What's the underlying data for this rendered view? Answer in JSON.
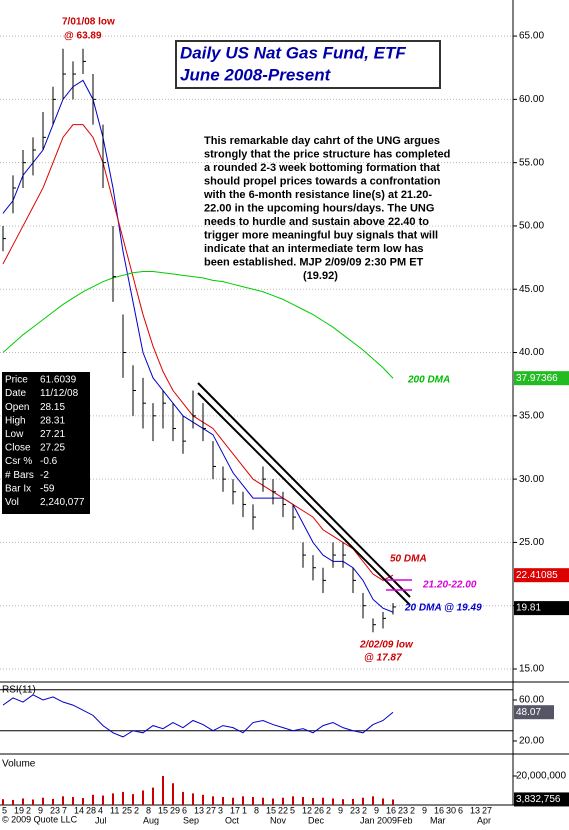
{
  "chart_data": {
    "type": "ohlc",
    "title": [
      "Daily US Nat Gas Fund, ETF",
      "June 2008-Present"
    ],
    "commentary": [
      "This remarkable day cahrt of the UNG argues",
      "strongly that the price structure has completed",
      "a rounded 2-3 week bottoming formation that",
      "should propel prices towards a confrontation",
      "with the 6-month resistance line(s) at 21.20-",
      "22.00 in the upcoming hours/days. The UNG",
      "needs to hurdle and sustain above 22.40 to",
      "trigger more meaningful buy signals that will",
      "indicate that an intermediate term low has",
      "been established. MJP  2/09/09 2:30 PM ET",
      "(19.92)"
    ],
    "annotations": {
      "high_note": [
        "7/01/08 low",
        "@ 63.89"
      ],
      "low_note": [
        "2/02/09 low",
        "@ 17.87"
      ],
      "dma200": "200 DMA",
      "dma50": "50 DMA",
      "resistance": "21.20-22.00",
      "dma20": "20 DMA @ 19.49"
    },
    "ylim": [
      14.13,
      67.85
    ],
    "yticks": [
      {
        "value": 65,
        "label": "65.00"
      },
      {
        "value": 60,
        "label": "60.00"
      },
      {
        "value": 55,
        "label": "55.00"
      },
      {
        "value": 50,
        "label": "50.00"
      },
      {
        "value": 45,
        "label": "45.00"
      },
      {
        "value": 40,
        "label": "40.00"
      },
      {
        "value": 35,
        "label": "35.00"
      },
      {
        "value": 30,
        "label": "30.00"
      },
      {
        "value": 25,
        "label": "25.00"
      },
      {
        "value": 20,
        "label": "20.00"
      },
      {
        "value": 15,
        "label": "15.00"
      }
    ],
    "grid": true,
    "high": [
      50,
      54,
      56,
      57,
      59,
      61,
      64,
      63,
      64,
      62,
      58,
      50,
      43,
      39,
      38,
      36,
      37,
      36,
      35,
      37,
      36,
      33,
      31,
      30,
      29,
      28,
      31,
      30,
      29,
      28,
      25,
      24,
      23,
      25,
      25,
      23,
      21,
      19,
      19.5,
      20.2
    ],
    "low": [
      48,
      51,
      53,
      54,
      56,
      58,
      60,
      60,
      62,
      58,
      53,
      44,
      38,
      35,
      34,
      33,
      34,
      33,
      32,
      34,
      33,
      30,
      29,
      28,
      27,
      26,
      29,
      28,
      27,
      26,
      23,
      22,
      21,
      23,
      23,
      21,
      19,
      17.9,
      18.2,
      19.3
    ],
    "close": [
      49,
      53,
      55,
      56,
      57,
      60,
      62,
      62,
      63,
      60,
      55,
      46,
      40,
      37,
      36,
      35,
      36,
      34,
      33,
      35,
      34,
      31,
      30,
      29,
      28,
      27,
      30,
      29,
      28,
      27,
      24,
      23,
      22,
      24,
      24,
      22,
      20,
      18.5,
      19,
      19.9
    ],
    "series": [
      {
        "color": "#0000cc",
        "values": [
          51,
          52,
          54,
          55,
          56,
          58,
          60,
          61,
          61.5,
          60,
          57,
          53,
          48,
          44,
          40,
          38,
          37,
          36,
          35,
          34.5,
          34,
          33.5,
          32,
          30.5,
          29.5,
          28.5,
          28.5,
          28.5,
          28.5,
          28,
          26.5,
          25,
          24,
          23.5,
          23.5,
          23,
          22,
          20.5,
          19.8,
          19.49
        ]
      },
      {
        "color": "#dd0000",
        "values": [
          47,
          48.5,
          50,
          51.5,
          53,
          55,
          57,
          58,
          58,
          57,
          55,
          52,
          49,
          46,
          43,
          40.5,
          38.5,
          37,
          36,
          35,
          34.5,
          34,
          33,
          32,
          31,
          30,
          29.5,
          29,
          28.5,
          28,
          27.5,
          27,
          26,
          25.5,
          25,
          24.5,
          23.5,
          22.5,
          22,
          22.41
        ]
      },
      {
        "color": "#00cc00",
        "values": [
          40,
          40.7,
          41.4,
          42,
          42.6,
          43.2,
          43.8,
          44.3,
          44.8,
          45.2,
          45.6,
          45.9,
          46.1,
          46.3,
          46.4,
          46.4,
          46.3,
          46.2,
          46.1,
          46,
          45.9,
          45.7,
          45.6,
          45.4,
          45.2,
          45,
          44.8,
          44.5,
          44.2,
          43.8,
          43.4,
          43,
          42.5,
          42,
          41.4,
          40.8,
          40.2,
          39.5,
          38.8,
          37.97
        ]
      }
    ],
    "end_labels": [
      {
        "value": 37.97366,
        "label": "37.97366",
        "color": "#22bb22"
      },
      {
        "value": 22.41085,
        "label": "22.41085",
        "color": "#dd0000"
      },
      {
        "value": 19.81,
        "label": "19.81",
        "color": "#000000"
      }
    ],
    "info": [
      [
        "Price",
        "61.6039"
      ],
      [
        "Date",
        "11/12/08"
      ],
      [
        "Open",
        "28.15"
      ],
      [
        "High",
        "28.31"
      ],
      [
        "Low",
        "27.21"
      ],
      [
        "Close",
        "27.25"
      ],
      [
        "Csr %",
        "-0.6"
      ],
      [
        "# Bars",
        "-2"
      ],
      [
        "Bar Ix",
        "-59"
      ],
      [
        "Vol",
        "2,240,077"
      ]
    ],
    "rsi": {
      "title": "RSI(11)",
      "ylim": [
        11.2,
        75.6
      ],
      "yticks": [
        {
          "value": 60,
          "label": "60.00"
        },
        {
          "value": 20,
          "label": "20.00"
        }
      ],
      "bands": [
        70,
        30
      ],
      "color": "#0000cc",
      "values": [
        55,
        62,
        58,
        65,
        60,
        63,
        58,
        55,
        50,
        45,
        35,
        28,
        24,
        30,
        28,
        35,
        32,
        38,
        33,
        40,
        36,
        30,
        35,
        33,
        28,
        38,
        40,
        36,
        33,
        30,
        32,
        28,
        35,
        38,
        33,
        30,
        28,
        36,
        40,
        48.07
      ],
      "end_label": {
        "value": 48.07,
        "label": "48.07"
      }
    },
    "volume": {
      "title": "Volume",
      "ylim": [
        0,
        32400000
      ],
      "yticks": [
        {
          "value": 20000000,
          "label": "20,000,000"
        }
      ],
      "values": [
        4000000,
        3500000,
        4500000,
        3800000,
        5000000,
        4200000,
        6000000,
        5500000,
        4800000,
        7000000,
        6500000,
        8000000,
        9000000,
        7500000,
        10000000,
        12000000,
        20000000,
        15000000,
        9000000,
        8000000,
        7000000,
        6000000,
        5500000,
        5000000,
        6000000,
        5500000,
        5000000,
        4500000,
        5000000,
        6000000,
        5500000,
        4800000,
        5000000,
        4500000,
        4000000,
        4200000,
        5000000,
        6000000,
        4500000,
        3832756
      ],
      "end_label": {
        "value": 3832756,
        "label": "3,832,756"
      }
    },
    "xticks": [
      "5",
      "19",
      "2",
      "9",
      "23",
      "7",
      "14",
      "28",
      "4",
      "11",
      "25",
      "2",
      "8",
      "15",
      "29",
      "6",
      "13",
      "27",
      "3",
      "17",
      "1",
      "8",
      "15",
      "22",
      "5",
      "12",
      "26",
      "2",
      "9",
      "23",
      "2",
      "9",
      "16",
      "23",
      "2",
      "9",
      "16",
      "30",
      "6",
      "13",
      "27"
    ],
    "months": [
      "Jul",
      "Aug",
      "Sep",
      "Oct",
      "Nov",
      "Dec",
      "Jan 2009",
      "Feb",
      "Mar",
      "Apr"
    ],
    "copyright": "© 2009 Quote LLC"
  }
}
